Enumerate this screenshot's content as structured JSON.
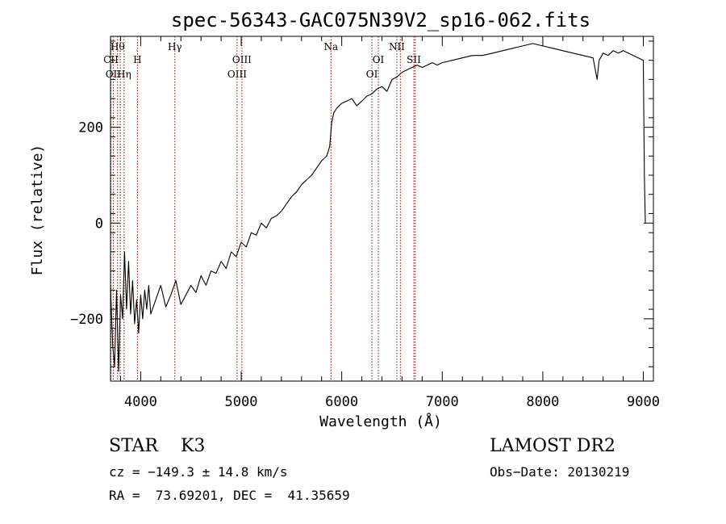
{
  "chart_data": {
    "type": "line",
    "title": "spec-56343-GAC075N39V2_sp16-062.fits",
    "xlabel": "Wavelength (Å)",
    "ylabel": "Flux (relative)",
    "xlim": [
      3700,
      9100
    ],
    "ylim": [
      -330,
      390
    ],
    "x_ticks": [
      4000,
      5000,
      6000,
      7000,
      8000,
      9000
    ],
    "y_ticks": [
      -200,
      0,
      200
    ],
    "grid": false,
    "series": [
      {
        "points": [
          [
            3700,
            -130
          ],
          [
            3720,
            -250
          ],
          [
            3740,
            -300
          ],
          [
            3760,
            -140
          ],
          [
            3780,
            -310
          ],
          [
            3800,
            -150
          ],
          [
            3820,
            -200
          ],
          [
            3840,
            -60
          ],
          [
            3860,
            -180
          ],
          [
            3880,
            -80
          ],
          [
            3900,
            -190
          ],
          [
            3920,
            -120
          ],
          [
            3940,
            -210
          ],
          [
            3960,
            -160
          ],
          [
            3980,
            -230
          ],
          [
            4000,
            -150
          ],
          [
            4020,
            -200
          ],
          [
            4040,
            -140
          ],
          [
            4060,
            -180
          ],
          [
            4080,
            -130
          ],
          [
            4100,
            -190
          ],
          [
            4150,
            -160
          ],
          [
            4200,
            -130
          ],
          [
            4250,
            -175
          ],
          [
            4300,
            -150
          ],
          [
            4350,
            -120
          ],
          [
            4400,
            -170
          ],
          [
            4450,
            -150
          ],
          [
            4500,
            -130
          ],
          [
            4550,
            -145
          ],
          [
            4600,
            -110
          ],
          [
            4650,
            -130
          ],
          [
            4700,
            -100
          ],
          [
            4750,
            -105
          ],
          [
            4800,
            -80
          ],
          [
            4850,
            -95
          ],
          [
            4900,
            -60
          ],
          [
            4950,
            -70
          ],
          [
            5000,
            -40
          ],
          [
            5050,
            -50
          ],
          [
            5100,
            -20
          ],
          [
            5150,
            -25
          ],
          [
            5200,
            0
          ],
          [
            5250,
            -10
          ],
          [
            5300,
            10
          ],
          [
            5350,
            15
          ],
          [
            5400,
            25
          ],
          [
            5450,
            40
          ],
          [
            5500,
            55
          ],
          [
            5550,
            65
          ],
          [
            5600,
            80
          ],
          [
            5650,
            90
          ],
          [
            5700,
            100
          ],
          [
            5750,
            115
          ],
          [
            5800,
            130
          ],
          [
            5850,
            140
          ],
          [
            5880,
            160
          ],
          [
            5900,
            210
          ],
          [
            5920,
            230
          ],
          [
            5950,
            240
          ],
          [
            6000,
            250
          ],
          [
            6050,
            255
          ],
          [
            6100,
            260
          ],
          [
            6150,
            245
          ],
          [
            6200,
            255
          ],
          [
            6250,
            265
          ],
          [
            6300,
            270
          ],
          [
            6350,
            280
          ],
          [
            6400,
            285
          ],
          [
            6450,
            275
          ],
          [
            6500,
            300
          ],
          [
            6550,
            305
          ],
          [
            6600,
            315
          ],
          [
            6650,
            320
          ],
          [
            6700,
            325
          ],
          [
            6750,
            330
          ],
          [
            6800,
            325
          ],
          [
            6850,
            330
          ],
          [
            6900,
            335
          ],
          [
            6950,
            330
          ],
          [
            7000,
            335
          ],
          [
            7100,
            340
          ],
          [
            7200,
            345
          ],
          [
            7300,
            350
          ],
          [
            7400,
            350
          ],
          [
            7500,
            355
          ],
          [
            7600,
            360
          ],
          [
            7700,
            365
          ],
          [
            7800,
            370
          ],
          [
            7900,
            375
          ],
          [
            8000,
            370
          ],
          [
            8100,
            365
          ],
          [
            8200,
            360
          ],
          [
            8300,
            355
          ],
          [
            8400,
            350
          ],
          [
            8500,
            345
          ],
          [
            8540,
            300
          ],
          [
            8560,
            340
          ],
          [
            8600,
            355
          ],
          [
            8650,
            350
          ],
          [
            8700,
            360
          ],
          [
            8750,
            355
          ],
          [
            8800,
            360
          ],
          [
            8850,
            355
          ],
          [
            8900,
            350
          ],
          [
            8950,
            345
          ],
          [
            9000,
            340
          ],
          [
            9010,
            100
          ],
          [
            9020,
            0
          ]
        ]
      }
    ],
    "lines": [
      {
        "x": 3704,
        "label": "CII",
        "row": 2
      },
      {
        "x": 3727,
        "label": "OII",
        "row": 3
      },
      {
        "x": 3770,
        "label": "Hθ",
        "row": 1
      },
      {
        "x": 3797,
        "label": "",
        "row": 0
      },
      {
        "x": 3835,
        "label": "Hη",
        "row": 3
      },
      {
        "x": 3968,
        "label": "H",
        "row": 2
      },
      {
        "x": 4340,
        "label": "Hγ",
        "row": 1
      },
      {
        "x": 4959,
        "label": "OIII",
        "row": 3
      },
      {
        "x": 5007,
        "label": "OIII",
        "row": 2
      },
      {
        "x": 5893,
        "label": "Na",
        "row": 1
      },
      {
        "x": 6300,
        "label": "OI",
        "row": 3
      },
      {
        "x": 6364,
        "label": "OI",
        "row": 2
      },
      {
        "x": 6548,
        "label": "NII",
        "row": 1
      },
      {
        "x": 6583,
        "label": "",
        "row": 0
      },
      {
        "x": 6717,
        "label": "SII",
        "row": 2
      },
      {
        "x": 6731,
        "label": "",
        "row": 0
      }
    ]
  },
  "info": {
    "class": "STAR    K3",
    "survey": "LAMOST DR2",
    "cz": "cz = −149.3 ± 14.8 km/s",
    "obs_date": "Obs−Date: 20130219",
    "coords": "RA =  73.69201, DEC =  41.35659"
  }
}
